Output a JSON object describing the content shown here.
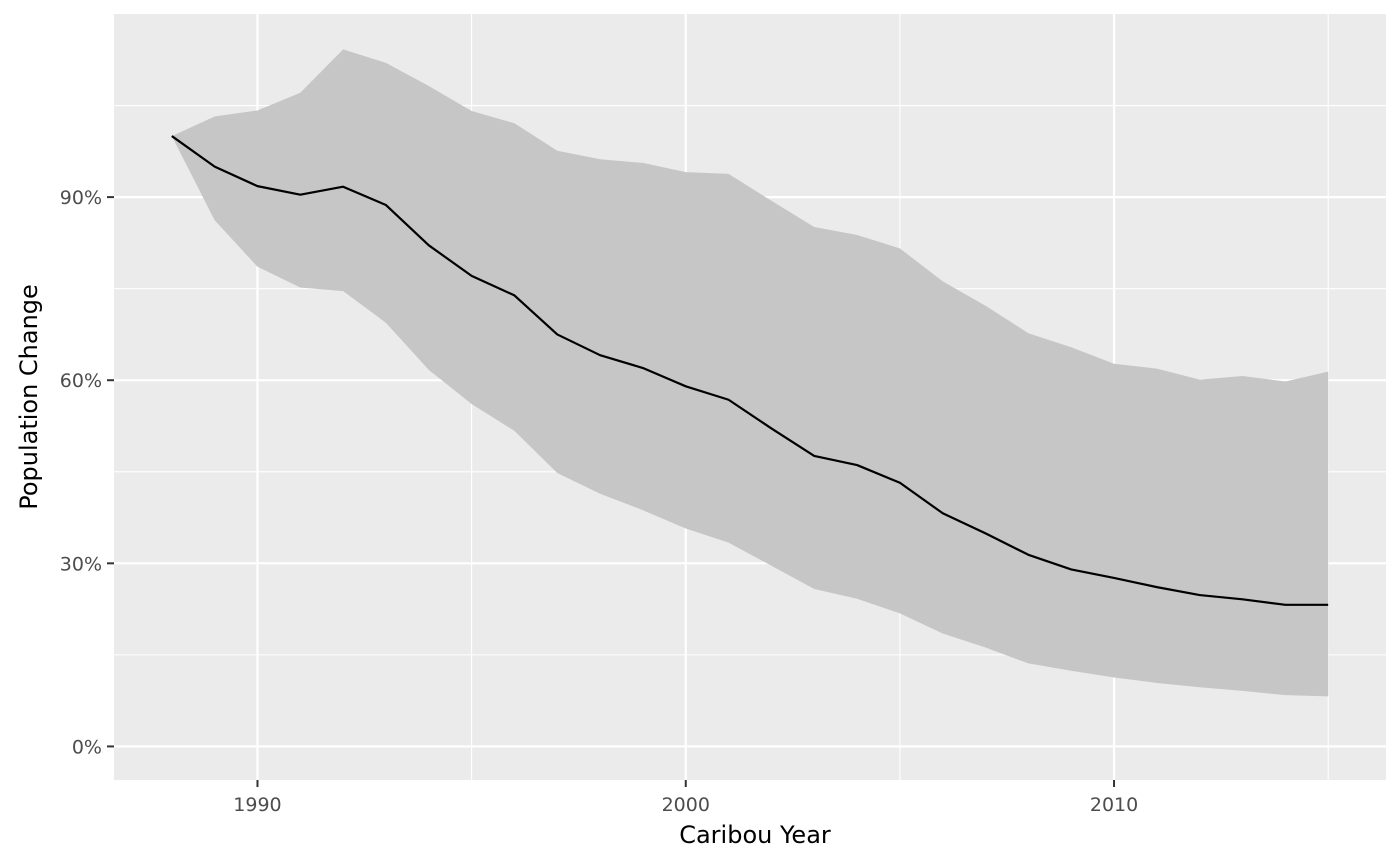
{
  "chart_data": {
    "type": "line",
    "title": "",
    "xlabel": "Caribou Year",
    "ylabel": "Population Change",
    "xlim": [
      1986.65,
      2016.35
    ],
    "ylim": [
      -0.055,
      1.2
    ],
    "x_ticks": [
      1990,
      2000,
      2010
    ],
    "x_tick_labels": [
      "1990",
      "2000",
      "2010"
    ],
    "x_minor_ticks": [
      1995,
      2005,
      2015
    ],
    "y_ticks": [
      0,
      0.3,
      0.6,
      0.9
    ],
    "y_tick_labels": [
      "0%",
      "30%",
      "60%",
      "90%"
    ],
    "y_minor_ticks": [
      0.15,
      0.45,
      0.75,
      1.05
    ],
    "grid": true,
    "legend": "none",
    "colors": {
      "panel": "#EBEBEB",
      "grid": "#FFFFFF",
      "ribbon": "#C6C6C6",
      "line": "#000000"
    },
    "x": [
      1988,
      1989,
      1990,
      1991,
      1992,
      1993,
      1994,
      1995,
      1996,
      1997,
      1998,
      1999,
      2000,
      2001,
      2002,
      2003,
      2004,
      2005,
      2006,
      2007,
      2008,
      2009,
      2010,
      2011,
      2012,
      2013,
      2014,
      2015
    ],
    "series": [
      {
        "name": "",
        "values": [
          1.0,
          0.95,
          0.918,
          0.904,
          0.917,
          0.887,
          0.821,
          0.771,
          0.739,
          0.675,
          0.641,
          0.62,
          0.59,
          0.568,
          0.521,
          0.476,
          0.461,
          0.432,
          0.382,
          0.349,
          0.314,
          0.29,
          0.276,
          0.261,
          0.248,
          0.241,
          0.232,
          0.232
        ],
        "lower": [
          1.0,
          0.862,
          0.786,
          0.752,
          0.746,
          0.694,
          0.617,
          0.561,
          0.517,
          0.448,
          0.414,
          0.387,
          0.357,
          0.334,
          0.296,
          0.258,
          0.242,
          0.218,
          0.185,
          0.162,
          0.136,
          0.124,
          0.113,
          0.104,
          0.097,
          0.091,
          0.084,
          0.082
        ],
        "upper": [
          1.0,
          1.032,
          1.042,
          1.071,
          1.142,
          1.12,
          1.082,
          1.041,
          1.021,
          0.976,
          0.962,
          0.956,
          0.941,
          0.938,
          0.894,
          0.851,
          0.838,
          0.816,
          0.762,
          0.722,
          0.677,
          0.654,
          0.627,
          0.619,
          0.601,
          0.607,
          0.598,
          0.614
        ]
      }
    ]
  }
}
